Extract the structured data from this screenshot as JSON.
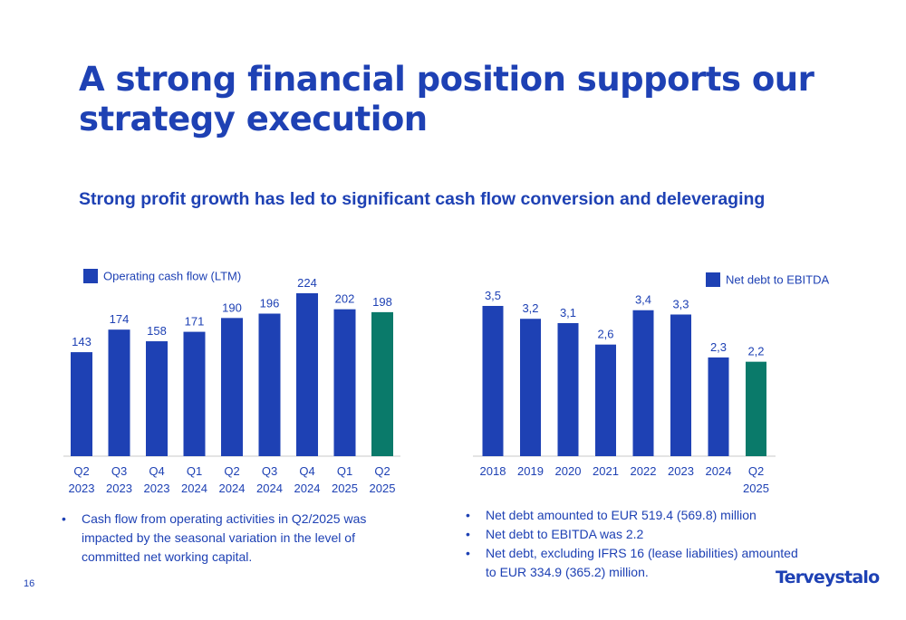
{
  "slide": {
    "title": "A strong financial position supports our strategy execution",
    "subtitle": "Strong profit growth has led to significant cash flow conversion and deleveraging",
    "page_number": "16",
    "logo_text": "Terveystalo"
  },
  "colors": {
    "primary_blue": "#1e41b4",
    "highlight_teal": "#0a7a6a"
  },
  "chart_data": [
    {
      "type": "bar",
      "legend": "Operating cash flow (LTM)",
      "categories": [
        [
          "Q2",
          "2023"
        ],
        [
          "Q3",
          "2023"
        ],
        [
          "Q4",
          "2023"
        ],
        [
          "Q1",
          "2024"
        ],
        [
          "Q2",
          "2024"
        ],
        [
          "Q3",
          "2024"
        ],
        [
          "Q4",
          "2024"
        ],
        [
          "Q1",
          "2025"
        ],
        [
          "Q2",
          "2025"
        ]
      ],
      "values": [
        143,
        174,
        158,
        171,
        190,
        196,
        224,
        202,
        198
      ],
      "labels": [
        "143",
        "174",
        "158",
        "171",
        "190",
        "196",
        "224",
        "202",
        "198"
      ],
      "highlight_index": 8,
      "ylim": [
        0,
        224
      ],
      "grid": false,
      "legend_position": "top-left"
    },
    {
      "type": "bar",
      "legend": "Net debt to EBITDA",
      "categories": [
        [
          "2018"
        ],
        [
          "2019"
        ],
        [
          "2020"
        ],
        [
          "2021"
        ],
        [
          "2022"
        ],
        [
          "2023"
        ],
        [
          "2024"
        ],
        [
          "Q2",
          "2025"
        ]
      ],
      "values": [
        3.5,
        3.2,
        3.1,
        2.6,
        3.4,
        3.3,
        2.3,
        2.2
      ],
      "labels": [
        "3,5",
        "3,2",
        "3,1",
        "2,6",
        "3,4",
        "3,3",
        "2,3",
        "2,2"
      ],
      "highlight_index": 7,
      "ylim": [
        0,
        3.5
      ],
      "grid": false,
      "legend_position": "top-right"
    }
  ],
  "notes_left": [
    "Cash flow from operating activities in Q2/2025 was impacted by the seasonal variation in the level of committed net working capital."
  ],
  "notes_right": [
    "Net debt amounted to EUR 519.4 (569.8) million",
    "Net debt to EBITDA was 2.2",
    "Net debt, excluding IFRS 16 (lease liabilities) amounted to EUR 334.9 (365.2) million."
  ]
}
